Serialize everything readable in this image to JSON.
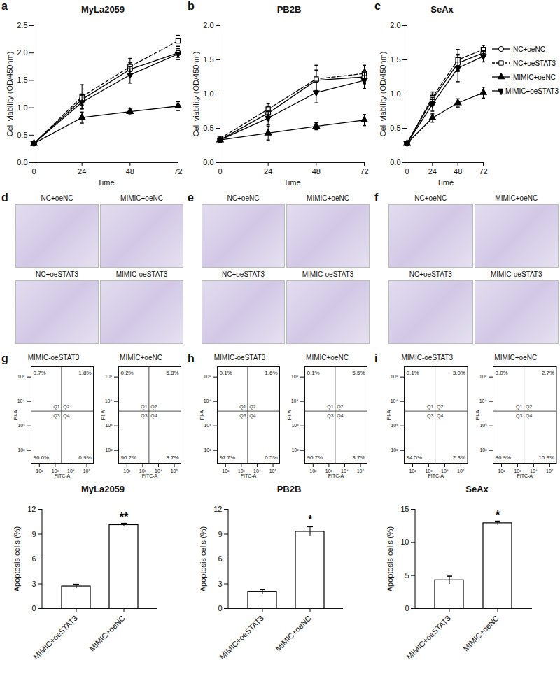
{
  "chart_data": [
    {
      "type": "line",
      "panel": "a",
      "title": "MyLa2059",
      "x_label": "Time",
      "y_label": "Cell viability (OD/450nm)",
      "x": [
        0,
        24,
        48,
        72
      ],
      "xlim": [
        0,
        72
      ],
      "xticks": [
        0,
        24,
        48,
        72
      ],
      "ylim": [
        0,
        2.5
      ],
      "yticks": [
        {
          "value": 0,
          "label": "0.0"
        },
        0.5,
        {
          "value": 1,
          "label": "1.0"
        },
        1.5,
        {
          "value": 2,
          "label": "2.0"
        },
        2.5
      ],
      "series": [
        {
          "name": "NC+oeNC",
          "color": "#000000",
          "marker": "circle-open",
          "line_style": "solid",
          "values": [
            0.35,
            1.15,
            1.7,
            2.0
          ],
          "errors": [
            0.03,
            0.1,
            0.12,
            0.08
          ]
        },
        {
          "name": "NC+oeSTAT3",
          "color": "#000000",
          "marker": "square-open",
          "line_style": "dashed",
          "values": [
            0.35,
            1.2,
            1.75,
            2.22
          ],
          "errors": [
            0.03,
            0.22,
            0.15,
            0.1
          ]
        },
        {
          "name": "MIMIC+oeNC",
          "color": "#000000",
          "marker": "triangle",
          "line_style": "solid",
          "values": [
            0.35,
            0.82,
            0.93,
            1.03
          ],
          "errors": [
            0.03,
            0.1,
            0.06,
            0.08
          ]
        },
        {
          "name": "MIMIC+oeSTAT3",
          "color": "#000000",
          "marker": "triangle-down",
          "line_style": "solid",
          "values": [
            0.35,
            1.1,
            1.6,
            1.98
          ],
          "errors": [
            0.03,
            0.12,
            0.15,
            0.1
          ]
        }
      ]
    },
    {
      "type": "line",
      "panel": "b",
      "title": "PB2B",
      "x_label": "Time",
      "y_label": "Cell viability (OD/450nm)",
      "x": [
        0,
        24,
        48,
        72
      ],
      "xlim": [
        0,
        72
      ],
      "xticks": [
        0,
        24,
        48,
        72
      ],
      "ylim": [
        0,
        2
      ],
      "yticks": [
        {
          "value": 0,
          "label": "0.0"
        },
        0.5,
        {
          "value": 1,
          "label": "1.0"
        },
        1.5,
        {
          "value": 2,
          "label": "2.0"
        }
      ],
      "series": [
        {
          "name": "NC+oeNC",
          "color": "#000000",
          "marker": "circle-open",
          "line_style": "solid",
          "values": [
            0.33,
            0.72,
            1.2,
            1.25
          ],
          "errors": [
            0.03,
            0.1,
            0.15,
            0.1
          ]
        },
        {
          "name": "NC+oeSTAT3",
          "color": "#000000",
          "marker": "square-open",
          "line_style": "dashed",
          "values": [
            0.35,
            0.78,
            1.22,
            1.3
          ],
          "errors": [
            0.03,
            0.08,
            0.2,
            0.12
          ]
        },
        {
          "name": "MIMIC+oeNC",
          "color": "#000000",
          "marker": "triangle",
          "line_style": "solid",
          "values": [
            0.33,
            0.43,
            0.53,
            0.62
          ],
          "errors": [
            0.03,
            0.1,
            0.05,
            0.08
          ]
        },
        {
          "name": "MIMIC+oeSTAT3",
          "color": "#000000",
          "marker": "triangle-down",
          "line_style": "solid",
          "values": [
            0.33,
            0.65,
            1.02,
            1.2
          ],
          "errors": [
            0.03,
            0.1,
            0.15,
            0.12
          ]
        }
      ]
    },
    {
      "type": "line",
      "panel": "c",
      "title": "SeAx",
      "x_label": "Time",
      "y_label": "Cell viability (OD/450nm)",
      "legend": "right",
      "x": [
        0,
        24,
        48,
        72
      ],
      "xlim": [
        0,
        72
      ],
      "xticks": [
        0,
        24,
        48,
        72
      ],
      "ylim": [
        0,
        2
      ],
      "yticks": [
        {
          "value": 0,
          "label": "0.0"
        },
        0.5,
        {
          "value": 1,
          "label": "1.0"
        },
        1.5,
        {
          "value": 2,
          "label": "2.0"
        }
      ],
      "series": [
        {
          "name": "NC+oeNC",
          "color": "#000000",
          "marker": "circle-open",
          "line_style": "solid",
          "values": [
            0.28,
            0.92,
            1.45,
            1.6
          ],
          "errors": [
            0.03,
            0.08,
            0.12,
            0.06
          ]
        },
        {
          "name": "NC+oeSTAT3",
          "color": "#000000",
          "marker": "square-open",
          "line_style": "dashed",
          "values": [
            0.28,
            0.95,
            1.5,
            1.65
          ],
          "errors": [
            0.03,
            0.08,
            0.15,
            0.06
          ]
        },
        {
          "name": "MIMIC+oeNC",
          "color": "#000000",
          "marker": "triangle",
          "line_style": "solid",
          "values": [
            0.28,
            0.65,
            0.87,
            1.02
          ],
          "errors": [
            0.03,
            0.06,
            0.06,
            0.08
          ]
        },
        {
          "name": "MIMIC+oeSTAT3",
          "color": "#000000",
          "marker": "triangle-down",
          "line_style": "solid",
          "values": [
            0.28,
            0.85,
            1.38,
            1.55
          ],
          "errors": [
            0.03,
            0.1,
            0.2,
            0.08
          ]
        }
      ]
    },
    {
      "type": "image",
      "panel": "d",
      "labels": [
        "NC+oeNC",
        "MIMIC+oeNC",
        "NC+oeSTAT3",
        "MIMIC-oeSTAT3"
      ]
    },
    {
      "type": "image",
      "panel": "e",
      "labels": [
        "NC+oeNC",
        "MIMIC+oeNC",
        "NC+oeSTAT3",
        "MIMIC-oeSTAT3"
      ]
    },
    {
      "type": "image",
      "panel": "f",
      "labels": [
        "NC+oeNC",
        "MIMIC+oeNC",
        "NC+oeSTAT3",
        "MIMIC-oeSTAT3"
      ]
    },
    {
      "type": "quadrant",
      "panel": "g",
      "x_label": "FITC-A",
      "y_label": "PI-A",
      "log": true,
      "xlim": [
        30,
        262144
      ],
      "ylim": [
        30,
        262144
      ],
      "xticks": [
        {
          "value": 100,
          "label": "10²"
        },
        {
          "value": 1000,
          "label": "10³"
        },
        {
          "value": 10000,
          "label": "10⁴"
        },
        {
          "value": 100000,
          "label": "10⁵"
        }
      ],
      "yticks": [
        {
          "value": 100,
          "label": "10²"
        },
        {
          "value": 1000,
          "label": "10³"
        },
        {
          "value": 10000,
          "label": "10⁴"
        },
        {
          "value": 100000,
          "label": "10⁵"
        }
      ],
      "gate": [
        2500,
        4000
      ],
      "quadrants": [
        "Q1",
        "Q2",
        "Q3",
        "Q4"
      ],
      "plots": [
        {
          "title": "MIMIC-oeSTAT3",
          "values": [
            0.7,
            1.8,
            96.6,
            0.9
          ],
          "value_labels": [
            "0.7%",
            "1.8%",
            "96.6%",
            "0.9%"
          ]
        },
        {
          "title": "MIMIC+oeNC",
          "values": [
            0.2,
            5.8,
            90.2,
            3.7
          ],
          "value_labels": [
            "0.2%",
            "5.8%",
            "90.2%",
            "3.7%"
          ]
        }
      ]
    },
    {
      "type": "quadrant",
      "panel": "h",
      "x_label": "FITC-A",
      "y_label": "PI-A",
      "log": true,
      "xlim": [
        30,
        262144
      ],
      "ylim": [
        30,
        262144
      ],
      "xticks": [
        {
          "value": 100,
          "label": "10²"
        },
        {
          "value": 1000,
          "label": "10³"
        },
        {
          "value": 10000,
          "label": "10⁴"
        },
        {
          "value": 100000,
          "label": "10⁵"
        }
      ],
      "yticks": [
        {
          "value": 100,
          "label": "10²"
        },
        {
          "value": 1000,
          "label": "10³"
        },
        {
          "value": 10000,
          "label": "10⁴"
        },
        {
          "value": 100000,
          "label": "10⁵"
        }
      ],
      "gate": [
        2500,
        4000
      ],
      "quadrants": [
        "Q1",
        "Q2",
        "Q3",
        "Q4"
      ],
      "plots": [
        {
          "title": "MIMIC-oeSTAT3",
          "values": [
            0.1,
            1.6,
            97.7,
            0.5
          ],
          "value_labels": [
            "0.1%",
            "1.6%",
            "97.7%",
            "0.5%"
          ]
        },
        {
          "title": "MIMIC+oeNC",
          "values": [
            0.1,
            5.5,
            90.7,
            3.7
          ],
          "value_labels": [
            "0.1%",
            "5.5%",
            "90.7%",
            "3.7%"
          ]
        }
      ]
    },
    {
      "type": "quadrant",
      "panel": "i",
      "x_label": "FITC-A",
      "y_label": "PI-A",
      "log": true,
      "xlim": [
        30,
        262144
      ],
      "ylim": [
        30,
        262144
      ],
      "xticks": [
        {
          "value": 100,
          "label": "10²"
        },
        {
          "value": 1000,
          "label": "10³"
        },
        {
          "value": 10000,
          "label": "10⁴"
        },
        {
          "value": 100000,
          "label": "10⁵"
        }
      ],
      "yticks": [
        {
          "value": 100,
          "label": "10²"
        },
        {
          "value": 1000,
          "label": "10³"
        },
        {
          "value": 10000,
          "label": "10⁴"
        },
        {
          "value": 100000,
          "label": "10⁵"
        }
      ],
      "gate": [
        2500,
        4000
      ],
      "quadrants": [
        "Q1",
        "Q2",
        "Q3",
        "Q4"
      ],
      "plots": [
        {
          "title": "MIMIC-oeSTAT3",
          "values": [
            0.1,
            3.0,
            94.5,
            2.3
          ],
          "value_labels": [
            "0.1%",
            "3.0%",
            "94.5%",
            "2.3%"
          ]
        },
        {
          "title": "MIMIC+oeNC",
          "values": [
            0.0,
            2.7,
            86.9,
            10.3
          ],
          "value_labels": [
            "0.0%",
            "2.7%",
            "86.9%",
            "10.3%"
          ]
        }
      ]
    },
    {
      "type": "bar",
      "title": "MyLa2059",
      "y_label": "Apoptosis cells (%)",
      "color": "#ffffff",
      "categories": [
        "MIMIC+oeSTAT3",
        "MIMIC+oeNC"
      ],
      "values": [
        2.7,
        10.1
      ],
      "errors": [
        0.25,
        0.2
      ],
      "annotations": [
        null,
        "**"
      ],
      "ylim": [
        0,
        12
      ],
      "yticks": [
        0,
        3,
        6,
        9,
        12
      ]
    },
    {
      "type": "bar",
      "title": "PB2B",
      "y_label": "Apoptosis cells (%)",
      "color": "#ffffff",
      "categories": [
        "MIMIC+oeSTAT3",
        "MIMIC+oeNC"
      ],
      "values": [
        2.0,
        9.3
      ],
      "errors": [
        0.3,
        0.6
      ],
      "annotations": [
        null,
        "*"
      ],
      "ylim": [
        0,
        12
      ],
      "yticks": [
        0,
        3,
        6,
        9,
        12
      ]
    },
    {
      "type": "bar",
      "title": "SeAx",
      "y_label": "Apoptosis cells (%)",
      "color": "#ffffff",
      "categories": [
        "MIMIC+oeSTAT3",
        "MIMIC+oeNC"
      ],
      "values": [
        4.3,
        12.9
      ],
      "errors": [
        0.6,
        0.3
      ],
      "annotations": [
        null,
        "*"
      ],
      "ylim": [
        0,
        15
      ],
      "yticks": [
        0,
        5,
        10,
        15
      ]
    }
  ]
}
